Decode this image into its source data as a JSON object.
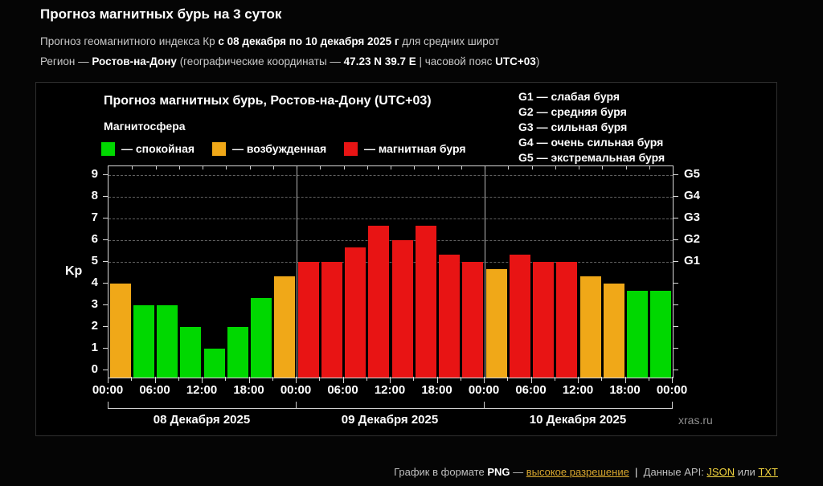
{
  "header": {
    "title": "Прогноз магнитных бурь на 3 суток",
    "line2": [
      {
        "t": "Прогноз геомагнитного индекса Кр ",
        "b": false
      },
      {
        "t": "с 08 декабря по 10 декабря 2025 г",
        "b": true
      },
      {
        "t": " для средних широт",
        "b": false
      }
    ],
    "line3": [
      {
        "t": "Регион — ",
        "b": false
      },
      {
        "t": "Ростов-на-Дону",
        "b": true
      },
      {
        "t": " (географические координаты — ",
        "b": false
      },
      {
        "t": "47.23 N 39.7 E",
        "b": true
      },
      {
        "t": " | часовой пояс ",
        "b": false
      },
      {
        "t": "UTC+03",
        "b": true
      },
      {
        "t": ")",
        "b": false
      }
    ]
  },
  "panel": {
    "chart_title": "Прогноз магнитных бурь, Ростов-на-Дону (UTC+03)",
    "legend_title": "Магнитосфера",
    "legend": [
      {
        "name": "quiet",
        "label": "— спокойная",
        "color": "#00d800"
      },
      {
        "name": "excited",
        "label": "— возбужденная",
        "color": "#f0a818"
      },
      {
        "name": "storm",
        "label": "— магнитная буря",
        "color": "#e81414"
      }
    ],
    "g_scale_legend": [
      "G1 — слабая буря",
      "G2 — средняя буря",
      "G3 — сильная буря",
      "G4 — очень сильная буря",
      "G5 — экстремальная буря"
    ],
    "watermark": "xras.ru"
  },
  "chart_data": {
    "type": "bar",
    "title": "Прогноз магнитных бурь, Ростов-на-Дону (UTC+03)",
    "ylabel": "Kp",
    "ylim": [
      0,
      9.4
    ],
    "yticks": [
      0,
      1,
      2,
      3,
      4,
      5,
      6,
      7,
      8,
      9
    ],
    "right_ticks": [
      {
        "label": "G1",
        "value": 5
      },
      {
        "label": "G2",
        "value": 6
      },
      {
        "label": "G3",
        "value": 7
      },
      {
        "label": "G4",
        "value": 8
      },
      {
        "label": "G5",
        "value": 9
      }
    ],
    "dashed_gridlines_at": [
      5,
      6,
      7,
      8,
      9
    ],
    "interval_hours": 3,
    "x_time_labels": [
      "00:00",
      "06:00",
      "12:00",
      "18:00"
    ],
    "days": [
      {
        "date": "08 Декабря 2025",
        "values": [
          4,
          3,
          3,
          2,
          1,
          2,
          3.33,
          4.33
        ]
      },
      {
        "date": "09 Декабря 2025",
        "values": [
          5,
          5,
          5.67,
          6.67,
          6,
          6.67,
          5.33,
          5
        ]
      },
      {
        "date": "10 Декабря 2025",
        "values": [
          4.67,
          5.33,
          5,
          5,
          4.33,
          4,
          3.67,
          3.67
        ]
      }
    ],
    "color_thresholds": {
      "quiet_below": 4,
      "excited_below": 5
    },
    "colors": {
      "quiet": "#00d800",
      "excited": "#f0a818",
      "storm": "#e81414"
    },
    "grid": true,
    "legend_position": "top-left"
  },
  "footer": {
    "prefix": "График в формате ",
    "png": "PNG",
    "dash": " — ",
    "link_hires": "высокое разрешение",
    "separator": "  |  ",
    "api_label": "Данные API: ",
    "link_json": "JSON",
    "or": " или ",
    "link_txt": "TXT"
  }
}
